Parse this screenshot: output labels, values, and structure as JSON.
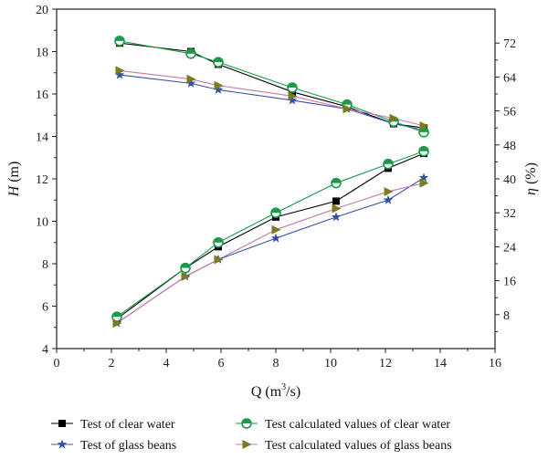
{
  "chart_data": {
    "type": "line",
    "xlabel": "Q (m³/s)",
    "xlabel_parts": {
      "main": "Q (m",
      "sup": "3",
      "tail": "/s)"
    },
    "ylabel_left": "H (m)",
    "ylabel_left_parts": {
      "sym": "H",
      "unit": " (m)"
    },
    "ylabel_right": "η (%)",
    "ylabel_right_parts": {
      "sym": "η",
      "unit": " (%)"
    },
    "xlim": [
      0,
      16
    ],
    "ylim_left": [
      4,
      20
    ],
    "ylim_right": [
      0,
      80
    ],
    "xticks": [
      0,
      2,
      4,
      6,
      8,
      10,
      12,
      14,
      16
    ],
    "yticks_left": [
      4,
      6,
      8,
      10,
      12,
      14,
      16,
      18,
      20
    ],
    "yticks_right": [
      8,
      16,
      24,
      32,
      40,
      48,
      56,
      64,
      72
    ],
    "grid": false,
    "legend_position": "bottom",
    "series": [
      {
        "name": "Test of clear water",
        "marker": "square",
        "color": "#000000",
        "axis": "left",
        "curves": [
          {
            "x": [
              2.3,
              4.9,
              5.9,
              8.6,
              10.6,
              12.3,
              13.4
            ],
            "y": [
              18.4,
              18.0,
              17.4,
              16.1,
              15.4,
              14.6,
              14.4
            ]
          },
          {
            "x": [
              2.2,
              4.7,
              5.9,
              8.0,
              10.2,
              12.1,
              13.4
            ],
            "y": [
              5.4,
              7.8,
              8.8,
              10.2,
              10.95,
              12.5,
              13.2
            ]
          }
        ]
      },
      {
        "name": "Test of glass beans",
        "marker": "star",
        "color": "#3650a8",
        "axis": "left",
        "curves": [
          {
            "x": [
              2.3,
              4.9,
              5.9,
              8.6,
              10.6,
              12.3,
              13.4
            ],
            "y": [
              16.9,
              16.5,
              16.2,
              15.7,
              15.3,
              14.6,
              14.3
            ]
          },
          {
            "x": [
              2.2,
              4.7,
              5.9,
              8.0,
              10.2,
              12.1,
              13.4
            ],
            "y": [
              5.2,
              7.4,
              8.2,
              9.2,
              10.2,
              11.0,
              12.05
            ]
          }
        ]
      },
      {
        "name": "Test calculated values of clear water",
        "marker": "half-filled-circle",
        "color": "#1a9a4a",
        "axis": "left",
        "curves": [
          {
            "x": [
              2.3,
              4.9,
              5.9,
              8.6,
              10.6,
              12.3,
              13.4
            ],
            "y": [
              18.5,
              17.9,
              17.5,
              16.3,
              15.5,
              14.7,
              14.2
            ]
          },
          {
            "x": [
              2.2,
              4.7,
              5.9,
              8.0,
              10.2,
              12.1,
              13.4
            ],
            "y": [
              5.5,
              7.8,
              9.0,
              10.4,
              11.8,
              12.7,
              13.3
            ]
          }
        ]
      },
      {
        "name": "Test calculated values of glass beans",
        "marker": "triangle-right",
        "color": "#7a7a1e",
        "line_color": "#c77aa8",
        "axis": "left",
        "curves": [
          {
            "x": [
              2.3,
              4.9,
              5.9,
              8.6,
              10.6,
              12.3,
              13.4
            ],
            "y": [
              17.1,
              16.7,
              16.4,
              15.9,
              15.3,
              14.85,
              14.5
            ]
          },
          {
            "x": [
              2.2,
              4.7,
              5.9,
              8.0,
              10.2,
              12.1,
              13.4
            ],
            "y": [
              5.2,
              7.4,
              8.2,
              9.6,
              10.6,
              11.4,
              11.8
            ]
          }
        ]
      }
    ]
  }
}
